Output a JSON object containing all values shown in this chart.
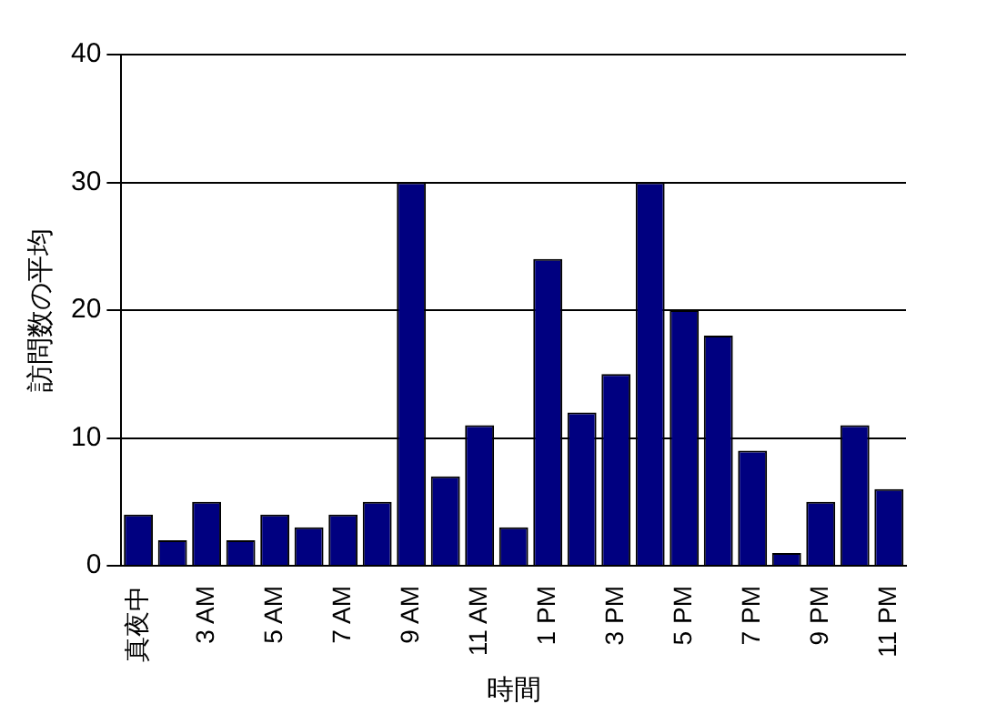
{
  "chart_data": {
    "type": "bar",
    "xlabel": "時間",
    "ylabel": "訪問数の平均",
    "categories": [
      "真夜中",
      null,
      "3 AM",
      null,
      "5 AM",
      null,
      "7 AM",
      null,
      "9 AM",
      null,
      "11 AM",
      null,
      "1 PM",
      null,
      "3 PM",
      null,
      "5 PM",
      null,
      "7 PM",
      null,
      "9 PM",
      null,
      "11 PM"
    ],
    "values": [
      4,
      2,
      5,
      2,
      4,
      3,
      4,
      5,
      30,
      7,
      11,
      3,
      24,
      12,
      15,
      30,
      20,
      18,
      9,
      1,
      5,
      11,
      6
    ],
    "color": "#000080",
    "ylim": [
      0,
      40
    ],
    "yticks": [
      0,
      10,
      20,
      30,
      40
    ],
    "grid": "y",
    "legend": false
  }
}
